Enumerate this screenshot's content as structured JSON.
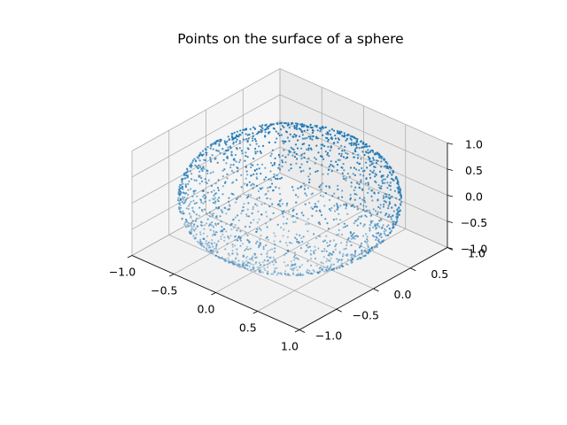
{
  "chart_data": {
    "type": "scatter",
    "projection": "3d",
    "title": "Points on the surface of a sphere",
    "xlabel": "",
    "ylabel": "",
    "zlabel": "",
    "xlim": [
      -1.0,
      1.0
    ],
    "ylim": [
      -1.0,
      1.0
    ],
    "zlim": [
      -1.0,
      1.0
    ],
    "x_ticks": [
      "−1.0",
      "−0.5",
      "0.0",
      "0.5",
      "1.0"
    ],
    "y_ticks": [
      "−1.0",
      "−0.5",
      "0.0",
      "0.5",
      "1.0"
    ],
    "z_ticks": [
      "−1.0",
      "−0.5",
      "0.0",
      "0.5",
      "1.0"
    ],
    "grid": true,
    "point_color": "#1f77b4",
    "series": [
      {
        "count": 2000,
        "distribution": "uniform random points on the unit sphere, x^2 + y^2 + z^2 = 1",
        "radius": 1.0,
        "center": [
          0,
          0,
          0
        ]
      }
    ]
  }
}
